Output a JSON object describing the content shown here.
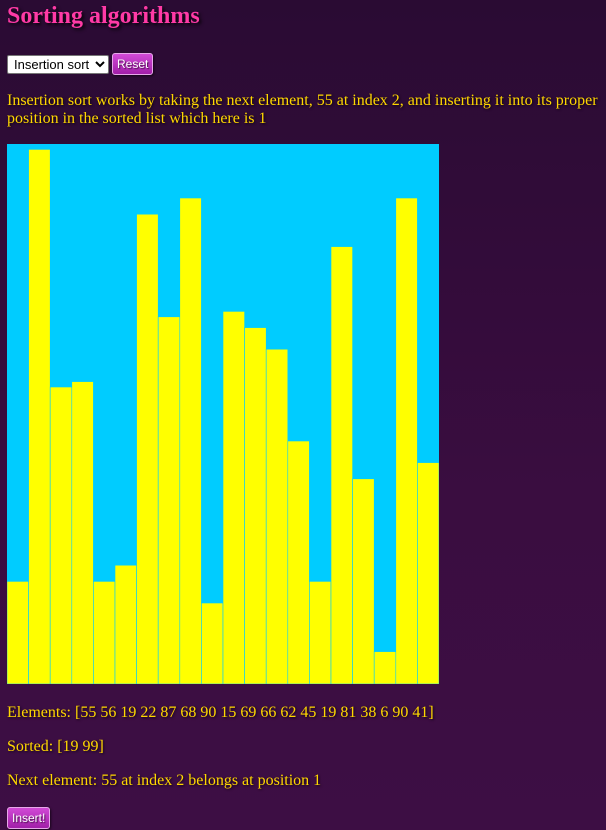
{
  "page": {
    "title": "Sorting algorithms"
  },
  "controls": {
    "algorithm_selected": "Insertion sort",
    "reset_label": "Reset"
  },
  "description": "Insertion sort works by taking the next element, 55 at index 2, and inserting it into its proper position in the sorted list which here is 1",
  "status": {
    "elements": "Elements: [55 56 19 22 87 68 90 15 69 66 62 45 19 81 38 6 90 41]",
    "sorted": "Sorted: [19 99]",
    "next": "Next element: 55 at index 2 belongs at position 1"
  },
  "insert_label": "Insert!",
  "colors": {
    "bar": "#ffff00",
    "bar_border": "#00ccff",
    "background": "#00ccff"
  },
  "chart_data": {
    "type": "bar",
    "values": [
      19,
      99,
      55,
      56,
      19,
      22,
      87,
      68,
      90,
      15,
      69,
      66,
      62,
      45,
      19,
      81,
      38,
      6,
      90,
      41
    ],
    "ylim": [
      0,
      100
    ]
  }
}
